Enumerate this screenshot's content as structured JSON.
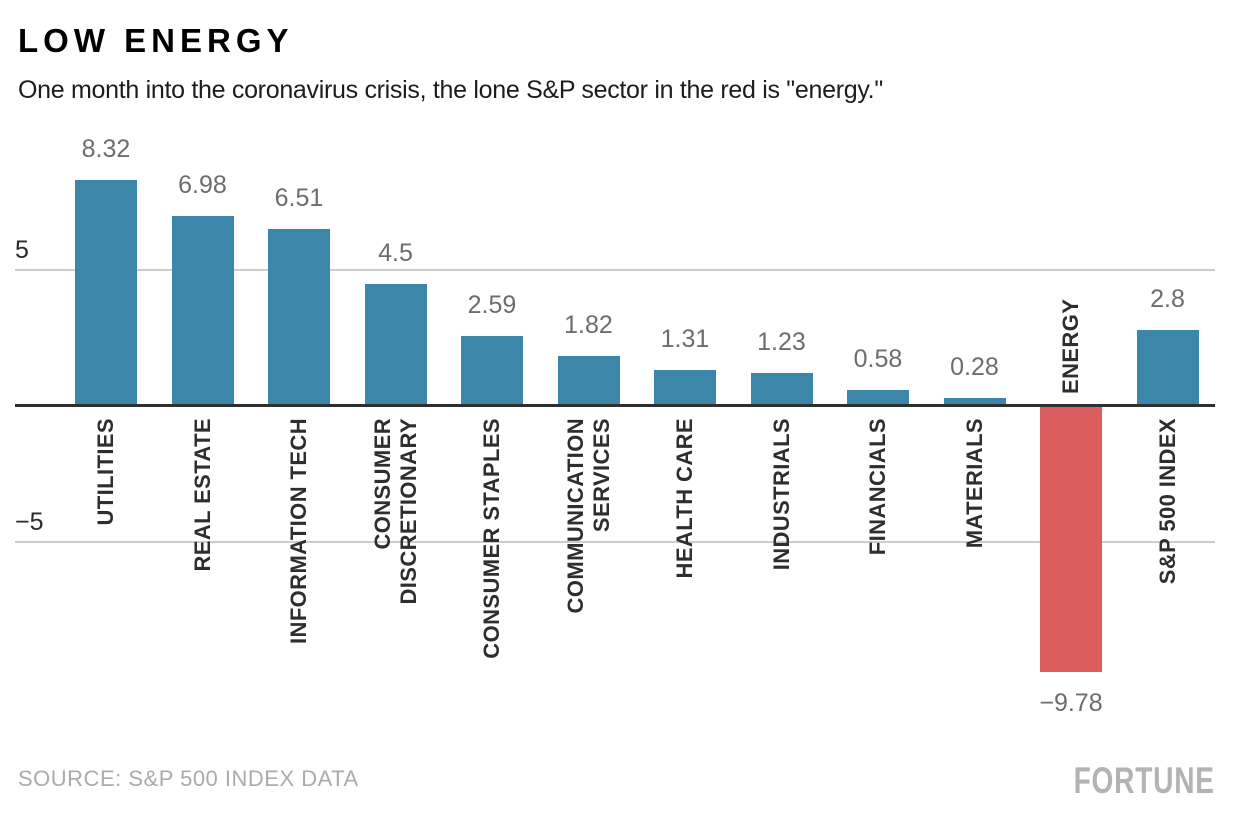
{
  "header": {
    "title": "LOW ENERGY",
    "subtitle": "One month into the coronavirus crisis, the lone S&P sector in the red is \"energy.\""
  },
  "footer": {
    "source": "SOURCE: S&P 500 INDEX DATA",
    "brand": "FORTUNE"
  },
  "chart_data": {
    "type": "bar",
    "title": "LOW ENERGY",
    "subtitle": "One month into the coronavirus crisis, the lone S&P sector in the red is \"energy.\"",
    "categories": [
      "UTILITIES",
      "REAL ESTATE",
      "INFORMATION TECH",
      "CONSUMER DISCRETIONARY",
      "CONSUMER STAPLES",
      "COMMUNICATION SERVICES",
      "HEALTH CARE",
      "INDUSTRIALS",
      "FINANCIALS",
      "MATERIALS",
      "ENERGY",
      "S&P 500 INDEX"
    ],
    "category_lines": [
      [
        "UTILITIES"
      ],
      [
        "REAL ESTATE"
      ],
      [
        "INFORMATION TECH"
      ],
      [
        "CONSUMER",
        "DISCRETIONARY"
      ],
      [
        "CONSUMER STAPLES"
      ],
      [
        "COMMUNICATION",
        "SERVICES"
      ],
      [
        "HEALTH CARE"
      ],
      [
        "INDUSTRIALS"
      ],
      [
        "FINANCIALS"
      ],
      [
        "MATERIALS"
      ],
      [
        "ENERGY"
      ],
      [
        "S&P 500 INDEX"
      ]
    ],
    "values": [
      8.32,
      6.98,
      6.51,
      4.5,
      2.59,
      1.82,
      1.31,
      1.23,
      0.58,
      0.28,
      -9.78,
      2.8
    ],
    "value_labels": [
      "8.32",
      "6.98",
      "6.51",
      "4.5",
      "2.59",
      "1.82",
      "1.31",
      "1.23",
      "0.58",
      "0.28",
      "−9.78",
      "2.8"
    ],
    "yticks": [
      {
        "value": 5,
        "label": "5"
      },
      {
        "value": -5,
        "label": "−5"
      }
    ],
    "ylim": [
      -10.5,
      10
    ],
    "grid": true,
    "legend": false,
    "bar_color": "#3b86a9",
    "negative_color": "#dd5e5e",
    "value_label_color": "#6d6d6d",
    "category_label_color": "#2e2e2e",
    "axis_color": "#2f2f2f",
    "gridline_color": "#cdcdcd"
  }
}
